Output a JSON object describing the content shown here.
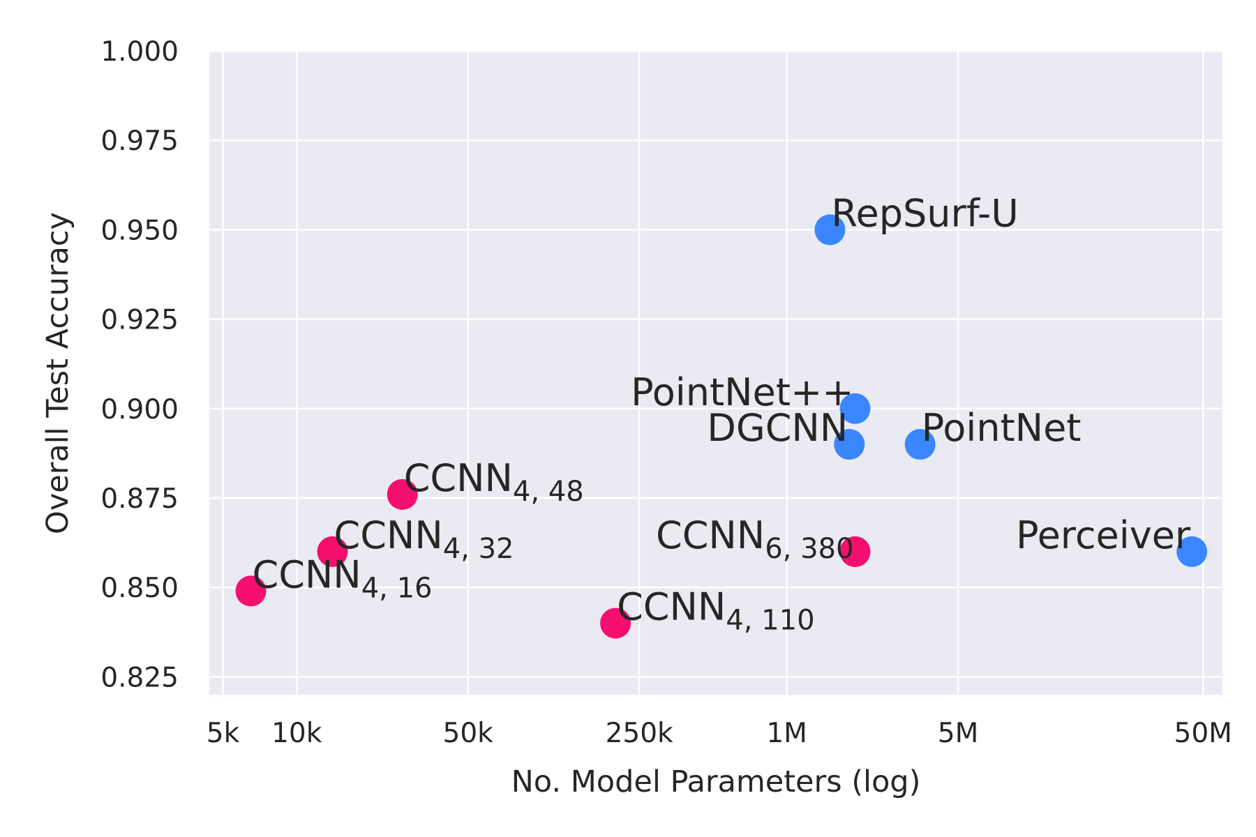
{
  "chart_data": {
    "type": "scatter",
    "xlabel": "No. Model Parameters (log)",
    "ylabel": "Overall Test Accuracy",
    "xscale": "log",
    "xlim": [
      4400,
      60000000
    ],
    "ylim": [
      0.82,
      1.0
    ],
    "grid": true,
    "colors": {
      "ccnn": "#f50f6e",
      "baseline": "#3a86ff",
      "plot_background": "#eaeaf2",
      "grid": "#ffffff"
    },
    "xticks": [
      {
        "value": 5000,
        "label": "5k"
      },
      {
        "value": 10000,
        "label": "10k"
      },
      {
        "value": 50000,
        "label": "50k"
      },
      {
        "value": 250000,
        "label": "250k"
      },
      {
        "value": 1000000,
        "label": "1M"
      },
      {
        "value": 5000000,
        "label": "5M"
      },
      {
        "value": 50000000,
        "label": "50M"
      }
    ],
    "yticks": [
      {
        "value": 0.825,
        "label": "0.825"
      },
      {
        "value": 0.85,
        "label": "0.850"
      },
      {
        "value": 0.875,
        "label": "0.875"
      },
      {
        "value": 0.9,
        "label": "0.900"
      },
      {
        "value": 0.925,
        "label": "0.925"
      },
      {
        "value": 0.95,
        "label": "0.950"
      },
      {
        "value": 0.975,
        "label": "0.975"
      },
      {
        "value": 1.0,
        "label": "1.000"
      }
    ],
    "points": [
      {
        "label": "CCNN",
        "sub": "4, 16",
        "x": 6500,
        "y": 0.849,
        "group": "ccnn",
        "anchor": "start"
      },
      {
        "label": "CCNN",
        "sub": "4, 32",
        "x": 14000,
        "y": 0.86,
        "group": "ccnn",
        "anchor": "start"
      },
      {
        "label": "CCNN",
        "sub": "4, 48",
        "x": 27000,
        "y": 0.876,
        "group": "ccnn",
        "anchor": "start"
      },
      {
        "label": "CCNN",
        "sub": "4, 110",
        "x": 200000,
        "y": 0.84,
        "group": "ccnn",
        "anchor": "start"
      },
      {
        "label": "CCNN",
        "sub": "6, 380",
        "x": 1900000,
        "y": 0.86,
        "group": "ccnn",
        "anchor": "end"
      },
      {
        "label": "RepSurf-U",
        "sub": "",
        "x": 1500000,
        "y": 0.95,
        "group": "baseline",
        "anchor": "start"
      },
      {
        "label": "PointNet++",
        "sub": "",
        "x": 1900000,
        "y": 0.9,
        "group": "baseline",
        "anchor": "end"
      },
      {
        "label": "DGCNN",
        "sub": "",
        "x": 1800000,
        "y": 0.89,
        "group": "baseline",
        "anchor": "end"
      },
      {
        "label": "PointNet",
        "sub": "",
        "x": 3500000,
        "y": 0.89,
        "group": "baseline",
        "anchor": "start"
      },
      {
        "label": "Perceiver",
        "sub": "",
        "x": 45000000,
        "y": 0.86,
        "group": "baseline",
        "anchor": "end"
      }
    ]
  }
}
